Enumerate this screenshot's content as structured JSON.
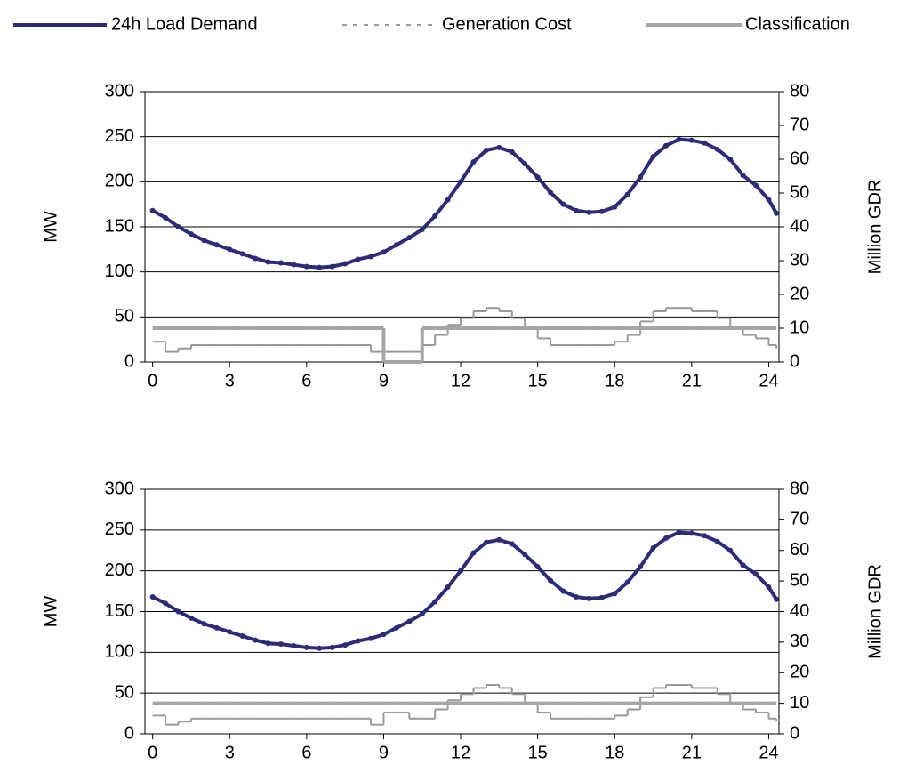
{
  "legend": true,
  "chart_data": [
    {
      "type": "line",
      "ylabel": "MW",
      "y2label": "Million GDR",
      "xlim": [
        -0.3,
        24.4
      ],
      "xticks": [
        0,
        3,
        6,
        9,
        12,
        15,
        18,
        21,
        24
      ],
      "ylim": [
        0,
        300
      ],
      "yticks": [
        0,
        50,
        100,
        150,
        200,
        250,
        300
      ],
      "y2lim": [
        0,
        80
      ],
      "y2ticks": [
        0,
        10,
        20,
        30,
        40,
        50,
        60,
        70,
        80
      ],
      "grid": true,
      "x": [
        0,
        0.5,
        1,
        1.5,
        2,
        2.5,
        3,
        3.5,
        4,
        4.5,
        5,
        5.5,
        6,
        6.5,
        7,
        7.5,
        8,
        8.5,
        9,
        9.5,
        10,
        10.5,
        11,
        11.5,
        12,
        12.5,
        13,
        13.5,
        14,
        14.5,
        15,
        15.5,
        16,
        16.5,
        17,
        17.5,
        18,
        18.5,
        19,
        19.5,
        20,
        20.5,
        21,
        21.5,
        22,
        22.5,
        23,
        23.5,
        24,
        24.3
      ],
      "series": [
        {
          "name": "24h Load Demand",
          "color": "#2b2b78",
          "values": [
            168,
            160,
            150,
            142,
            135,
            130,
            125,
            120,
            115,
            111,
            110,
            108,
            106,
            105,
            106,
            109,
            114,
            117,
            122,
            130,
            138,
            147,
            162,
            180,
            200,
            222,
            235,
            238,
            233,
            220,
            205,
            188,
            175,
            168,
            166,
            167,
            172,
            186,
            205,
            228,
            240,
            247,
            246,
            243,
            236,
            225,
            207,
            196,
            180,
            165
          ]
        },
        {
          "name": "Generation Cost",
          "color": "#9a9a9a",
          "axis": "y2",
          "step": true,
          "values": [
            6,
            3,
            4,
            5,
            5,
            5,
            5,
            5,
            5,
            5,
            5,
            5,
            5,
            5,
            5,
            5,
            5,
            3,
            3,
            3,
            3,
            5,
            8,
            11,
            13,
            15,
            16,
            15,
            13,
            10,
            7,
            5,
            5,
            5,
            5,
            5,
            6,
            8,
            12,
            15,
            16,
            16,
            15,
            15,
            13,
            10,
            8,
            7,
            5,
            4
          ]
        },
        {
          "name": "Classification",
          "color": "#a6a6a6",
          "axis": "y2",
          "step": true,
          "values": [
            10,
            10,
            10,
            10,
            10,
            10,
            10,
            10,
            10,
            10,
            10,
            10,
            10,
            10,
            10,
            10,
            10,
            10,
            0,
            0,
            0,
            10,
            10,
            10,
            10,
            10,
            10,
            10,
            10,
            10,
            10,
            10,
            10,
            10,
            10,
            10,
            10,
            10,
            10,
            10,
            10,
            10,
            10,
            10,
            10,
            10,
            10,
            10,
            10,
            10
          ]
        }
      ]
    },
    {
      "type": "line",
      "ylabel": "MW",
      "y2label": "Million GDR",
      "xlim": [
        -0.3,
        24.4
      ],
      "xticks": [
        0,
        3,
        6,
        9,
        12,
        15,
        18,
        21,
        24
      ],
      "ylim": [
        0,
        300
      ],
      "yticks": [
        0,
        50,
        100,
        150,
        200,
        250,
        300
      ],
      "y2lim": [
        0,
        80
      ],
      "y2ticks": [
        0,
        10,
        20,
        30,
        40,
        50,
        60,
        70,
        80
      ],
      "grid": true,
      "x": [
        0,
        0.5,
        1,
        1.5,
        2,
        2.5,
        3,
        3.5,
        4,
        4.5,
        5,
        5.5,
        6,
        6.5,
        7,
        7.5,
        8,
        8.5,
        9,
        9.5,
        10,
        10.5,
        11,
        11.5,
        12,
        12.5,
        13,
        13.5,
        14,
        14.5,
        15,
        15.5,
        16,
        16.5,
        17,
        17.5,
        18,
        18.5,
        19,
        19.5,
        20,
        20.5,
        21,
        21.5,
        22,
        22.5,
        23,
        23.5,
        24,
        24.3
      ],
      "series": [
        {
          "color": "#2b2b78",
          "values": [
            168,
            160,
            150,
            142,
            135,
            130,
            125,
            120,
            115,
            111,
            110,
            108,
            106,
            105,
            106,
            109,
            114,
            117,
            122,
            130,
            138,
            147,
            162,
            180,
            200,
            222,
            235,
            238,
            233,
            220,
            205,
            188,
            175,
            168,
            166,
            167,
            172,
            186,
            205,
            228,
            240,
            247,
            246,
            243,
            236,
            225,
            207,
            196,
            180,
            165
          ]
        },
        {
          "color": "#9a9a9a",
          "axis": "y2",
          "step": true,
          "values": [
            6,
            3,
            4,
            5,
            5,
            5,
            5,
            5,
            5,
            5,
            5,
            5,
            5,
            5,
            5,
            5,
            5,
            3,
            7,
            7,
            5,
            5,
            8,
            11,
            13,
            15,
            16,
            15,
            13,
            10,
            7,
            5,
            5,
            5,
            5,
            5,
            6,
            8,
            12,
            15,
            16,
            16,
            15,
            15,
            13,
            10,
            8,
            7,
            5,
            4
          ]
        },
        {
          "color": "#a6a6a6",
          "axis": "y2",
          "step": true,
          "values": [
            10,
            10,
            10,
            10,
            10,
            10,
            10,
            10,
            10,
            10,
            10,
            10,
            10,
            10,
            10,
            10,
            10,
            10,
            10,
            10,
            10,
            10,
            10,
            10,
            10,
            10,
            10,
            10,
            10,
            10,
            10,
            10,
            10,
            10,
            10,
            10,
            10,
            10,
            10,
            10,
            10,
            10,
            10,
            10,
            10,
            10,
            10,
            10,
            10,
            10
          ]
        }
      ]
    }
  ]
}
